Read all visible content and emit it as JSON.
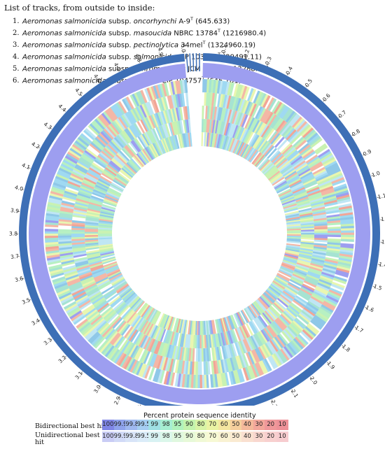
{
  "header": {
    "title": "List of tracks, from outside to inside:",
    "tracks": [
      {
        "num": "1.",
        "genus": "Aeromonas salmonicida",
        "subsp_word": "subsp.",
        "subsp": "oncorhynchi",
        "strain": "A-9",
        "sup": "T",
        "value": "(645.633)"
      },
      {
        "num": "2.",
        "genus": "Aeromonas salmonicida",
        "subsp_word": "subsp.",
        "subsp": "masoucida",
        "strain": "NBRC 13784",
        "sup": "T",
        "value": "(1216980.4)"
      },
      {
        "num": "3.",
        "genus": "Aeromonas salmonicida",
        "subsp_word": "subsp.",
        "subsp": "pectinolytica",
        "strain": "34mel",
        "sup": "T",
        "value": "(1324960.19)"
      },
      {
        "num": "4.",
        "genus": "Aeromonas salmonicida",
        "subsp_word": "subsp.",
        "subsp": "salmonicida",
        "strain": "CIP 103209",
        "sup": "T",
        "value": "(29491.11)"
      },
      {
        "num": "5.",
        "genus": "Aeromonas salmonicida",
        "subsp_word": "subsp.",
        "subsp": "achromogenes",
        "strain": "JCM 7875",
        "sup": "T",
        "value": "(113288.10)"
      },
      {
        "num": "6.",
        "genus": "Aeromonas salmonicida",
        "subsp_word": "subsp.",
        "subsp": "smithia",
        "strain": "CIP 104757",
        "sup": "T",
        "value": "(645.181)"
      }
    ]
  },
  "ring": {
    "tick_labels": [
      "0.1",
      "0.2",
      "0.3",
      "0.4",
      "0.5",
      "0.6",
      "0.7",
      "0.8",
      "0.9",
      "1.0",
      "1.1",
      "1.2",
      "1.3",
      "1.4",
      "1.5",
      "1.6",
      "1.7",
      "1.8",
      "1.9",
      "2.0",
      "2.1",
      "2.2",
      "2.3",
      "2.4",
      "2.5",
      "2.6",
      "2.7",
      "2.8",
      "2.9",
      "3.0",
      "3.1",
      "3.2",
      "3.3",
      "3.4",
      "3.5",
      "3.6",
      "3.7",
      "3.8",
      "3.9",
      "4.0",
      "4.1",
      "4.2",
      "4.3",
      "4.4",
      "4.5",
      "4.6",
      "4.7",
      "4.8",
      "4.9",
      "5.0"
    ],
    "colors": {
      "outer": "#3d6fb6",
      "track1": "#9d9ef0",
      "inner_mix": [
        "#a6e3d2",
        "#b7f0c2",
        "#9fd9f2",
        "#c9f2b2",
        "#8fc8e8",
        "#e9f6b0",
        "#f4b7a6",
        "#bfe6f4"
      ]
    }
  },
  "legend": {
    "title": "Percent protein sequence identity",
    "bidirectional_label": "Bidirectional best hit",
    "unidirectional_label_1": "Unidirectional best",
    "unidirectional_label_2": "hit",
    "values": [
      "100",
      "99.9",
      "99.8",
      "99.5",
      "99",
      "98",
      "95",
      "90",
      "80",
      "70",
      "60",
      "50",
      "40",
      "30",
      "20",
      "10"
    ],
    "bidirectional_colors": [
      "#7f86e6",
      "#8fa3ec",
      "#9fb8f0",
      "#a5cdf2",
      "#9fe0e4",
      "#a6eed1",
      "#b0f2bc",
      "#c3f3ad",
      "#d8f4a6",
      "#eaf3a3",
      "#f4e6a0",
      "#f5cf9d",
      "#f4b99b",
      "#f3a79b",
      "#f0989a",
      "#ee9198"
    ],
    "unidirectional_colors": [
      "#c9ccf5",
      "#d1daf7",
      "#d8e4f8",
      "#dbecf9",
      "#d8f2f3",
      "#dbf7ea",
      "#e0f8df",
      "#e7f9d8",
      "#f0f9d5",
      "#f7f9d4",
      "#f9f2d2",
      "#faead1",
      "#fae0d0",
      "#f9d7cf",
      "#f8d0cf",
      "#f7cccf"
    ]
  }
}
